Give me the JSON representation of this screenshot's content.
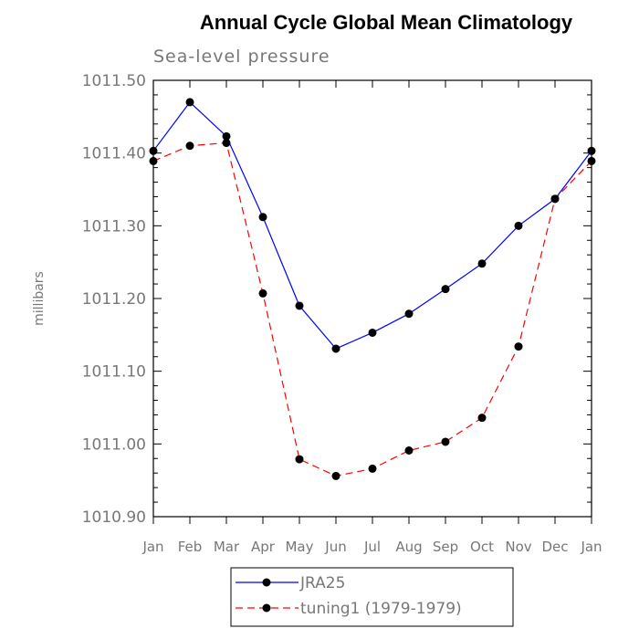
{
  "chart_data": {
    "type": "line",
    "title": "Annual Cycle Global Mean Climatology",
    "subtitle": "Sea-level pressure",
    "xlabel": "",
    "ylabel": "millibars",
    "categories": [
      "Jan",
      "Feb",
      "Mar",
      "Apr",
      "May",
      "Jun",
      "Jul",
      "Aug",
      "Sep",
      "Oct",
      "Nov",
      "Dec",
      "Jan"
    ],
    "ylim": [
      1010.9,
      1011.5
    ],
    "yticks": [
      "1010.90",
      "1011.00",
      "1011.10",
      "1011.20",
      "1011.30",
      "1011.40",
      "1011.50"
    ],
    "legend_position": "bottom-center",
    "series": [
      {
        "name": "JRA25",
        "color": "#0000ff",
        "dash": "solid",
        "values": [
          1011.403,
          1011.47,
          1011.423,
          1011.312,
          1011.19,
          1011.131,
          1011.153,
          1011.179,
          1011.213,
          1011.248,
          1011.3,
          1011.337,
          1011.403
        ]
      },
      {
        "name": "tuning1 (1979-1979)",
        "color": "#ff0000",
        "dash": "dashed",
        "values": [
          1011.389,
          1011.41,
          1011.414,
          1011.207,
          1010.979,
          1010.956,
          1010.966,
          1010.991,
          1011.003,
          1011.036,
          1011.134,
          1011.337,
          1011.389
        ]
      }
    ]
  }
}
